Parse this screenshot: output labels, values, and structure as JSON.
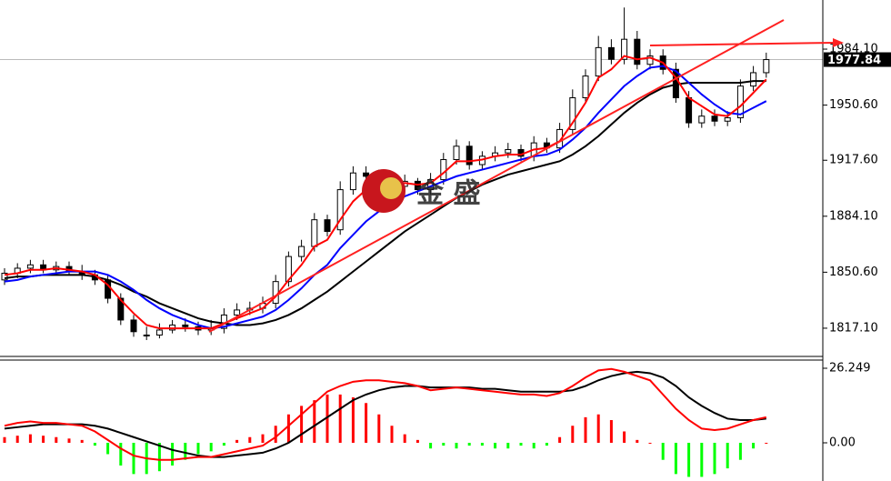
{
  "chart_data": [
    {
      "type": "candlestick",
      "up_color": "#ffffff",
      "down_color": "#000000",
      "edge_color": "#000000",
      "open": [
        1846,
        1850,
        1853,
        1855,
        1852,
        1854,
        1851,
        1849,
        1846,
        1835,
        1822,
        1813,
        1813,
        1816,
        1819,
        1818,
        1816,
        1817,
        1825,
        1828,
        1829,
        1832,
        1845,
        1860,
        1866,
        1882,
        1876,
        1900,
        1910,
        1908,
        1904,
        1902,
        1905,
        1900,
        1906,
        1918,
        1926,
        1915,
        1920,
        1922,
        1924,
        1920,
        1928,
        1925,
        1936,
        1955,
        1968,
        1985,
        1978,
        1990,
        1975,
        1980,
        1972,
        1955,
        1940,
        1944,
        1941,
        1943,
        1962,
        1970
      ],
      "high": [
        1853,
        1856,
        1858,
        1858,
        1857,
        1857,
        1855,
        1852,
        1849,
        1838,
        1825,
        1818,
        1820,
        1822,
        1823,
        1821,
        1822,
        1829,
        1832,
        1833,
        1836,
        1849,
        1863,
        1870,
        1886,
        1885,
        1905,
        1914,
        1914,
        1912,
        1908,
        1909,
        1907,
        1910,
        1922,
        1930,
        1929,
        1923,
        1926,
        1928,
        1927,
        1932,
        1931,
        1940,
        1960,
        1972,
        1992,
        1990,
        2009,
        1995,
        1984,
        1984,
        1976,
        1959,
        1948,
        1948,
        1947,
        1966,
        1974,
        1982
      ],
      "low": [
        1843,
        1847,
        1850,
        1850,
        1850,
        1849,
        1846,
        1843,
        1832,
        1819,
        1812,
        1810,
        1811,
        1814,
        1815,
        1813,
        1813,
        1814,
        1822,
        1825,
        1826,
        1829,
        1842,
        1857,
        1863,
        1872,
        1873,
        1897,
        1905,
        1901,
        1899,
        1899,
        1897,
        1897,
        1903,
        1915,
        1912,
        1912,
        1917,
        1919,
        1917,
        1917,
        1922,
        1922,
        1933,
        1952,
        1965,
        1975,
        1975,
        1972,
        1972,
        1969,
        1952,
        1937,
        1937,
        1938,
        1938,
        1940,
        1959,
        1967
      ],
      "close": [
        1850,
        1853,
        1855,
        1852,
        1854,
        1851,
        1849,
        1846,
        1835,
        1822,
        1815,
        1813,
        1816,
        1819,
        1818,
        1816,
        1817,
        1825,
        1828,
        1829,
        1832,
        1845,
        1860,
        1866,
        1882,
        1875,
        1900,
        1910,
        1908,
        1904,
        1902,
        1905,
        1900,
        1906,
        1918,
        1926,
        1915,
        1920,
        1922,
        1924,
        1920,
        1928,
        1925,
        1936,
        1955,
        1968,
        1985,
        1978,
        1990,
        1975,
        1980,
        1972,
        1955,
        1940,
        1944,
        1941,
        1943,
        1962,
        1970,
        1977.84
      ],
      "series": [
        {
          "color": "#000000",
          "values": [
            1847,
            1848,
            1848,
            1849,
            1849,
            1849,
            1849,
            1848,
            1846,
            1843,
            1839,
            1836,
            1832,
            1829,
            1826,
            1823,
            1821,
            1820,
            1819,
            1819,
            1820,
            1822,
            1825,
            1829,
            1834,
            1839,
            1845,
            1851,
            1857,
            1863,
            1869,
            1875,
            1880,
            1885,
            1890,
            1895,
            1899,
            1903,
            1906,
            1909,
            1911,
            1913,
            1915,
            1917,
            1921,
            1926,
            1932,
            1939,
            1946,
            1952,
            1957,
            1961,
            1963,
            1964,
            1964,
            1964,
            1964,
            1964,
            1965,
            1965
          ]
        },
        {
          "color": "#0000ff",
          "values": [
            1845,
            1846,
            1848,
            1849,
            1850,
            1851,
            1851,
            1851,
            1849,
            1845,
            1840,
            1834,
            1829,
            1825,
            1822,
            1819,
            1817,
            1818,
            1820,
            1822,
            1824,
            1828,
            1834,
            1841,
            1849,
            1855,
            1865,
            1873,
            1881,
            1887,
            1892,
            1896,
            1899,
            1902,
            1905,
            1908,
            1910,
            1912,
            1914,
            1916,
            1918,
            1920,
            1921,
            1924,
            1930,
            1937,
            1946,
            1954,
            1962,
            1968,
            1973,
            1974,
            1971,
            1964,
            1957,
            1951,
            1946,
            1945,
            1949,
            1953
          ]
        },
        {
          "color": "#ff0000",
          "values": [
            1849,
            1850,
            1852,
            1852,
            1853,
            1852,
            1851,
            1849,
            1843,
            1834,
            1826,
            1819,
            1817,
            1817,
            1817,
            1817,
            1817,
            1820,
            1823,
            1826,
            1829,
            1836,
            1846,
            1855,
            1866,
            1870,
            1882,
            1893,
            1900,
            1903,
            1903,
            1904,
            1903,
            1904,
            1910,
            1917,
            1917,
            1918,
            1920,
            1921,
            1921,
            1924,
            1925,
            1929,
            1940,
            1952,
            1967,
            1972,
            1980,
            1978,
            1979,
            1976,
            1967,
            1955,
            1950,
            1945,
            1944,
            1950,
            1958,
            1966
          ]
        }
      ],
      "ylim": [
        1800.2,
        2013.5
      ],
      "yticks": [
        {
          "value": 1817.1,
          "label": "1817.10"
        },
        {
          "value": 1850.6,
          "label": "1850.60"
        },
        {
          "value": 1884.1,
          "label": "1884.10"
        },
        {
          "value": 1917.6,
          "label": "1917.60"
        },
        {
          "value": 1950.6,
          "label": "1950.60"
        },
        {
          "value": 1984.1,
          "label": "1984.10"
        }
      ],
      "current_price": 1977.84,
      "watermark": "金 盛"
    },
    {
      "type": "macd",
      "positive_color": "#ff0000",
      "negative_color": "#00ff00",
      "histogram": [
        2,
        2.5,
        3,
        2.5,
        2,
        1.5,
        1,
        -1,
        -4,
        -8,
        -11,
        -11,
        -10,
        -8,
        -6,
        -4,
        -3,
        -1,
        1,
        2,
        3,
        6,
        10,
        13,
        15,
        17,
        17,
        16,
        14,
        10,
        6,
        3,
        1,
        -2,
        -1,
        -2,
        -1,
        -1,
        -2,
        -2,
        -1,
        -2,
        -1,
        2,
        6,
        9,
        10,
        8,
        4,
        1,
        0,
        -6,
        -11,
        -12,
        -12,
        -11,
        -9,
        -6,
        -2,
        0
      ],
      "series": [
        {
          "color": "#000000",
          "values": [
            5,
            5.5,
            6,
            6.5,
            6.5,
            6.5,
            6.5,
            6,
            5,
            3.5,
            2,
            0.5,
            -1,
            -2.5,
            -3.5,
            -4.5,
            -5,
            -5,
            -4.5,
            -4,
            -3.5,
            -2,
            0,
            3,
            6,
            9,
            12,
            15,
            17,
            18.5,
            19.5,
            20,
            20,
            19.5,
            19.5,
            19.5,
            19.5,
            19,
            19,
            18.5,
            18,
            18,
            18,
            18,
            18.5,
            20,
            22,
            23.5,
            24.5,
            25,
            24.5,
            23,
            20,
            16,
            13,
            10.5,
            8.5,
            8,
            8,
            8.5
          ]
        },
        {
          "color": "#ff0000",
          "values": [
            6,
            7,
            7.5,
            7,
            7,
            6.5,
            6,
            4,
            1,
            -2,
            -4.5,
            -5.5,
            -6,
            -6,
            -5.5,
            -5,
            -5,
            -4,
            -3,
            -2,
            -1,
            2,
            6,
            10,
            14,
            18,
            20,
            21.5,
            22,
            22,
            21.5,
            21,
            20,
            18.5,
            19,
            19.5,
            19,
            18.5,
            18,
            17.5,
            17,
            17,
            16.5,
            17.5,
            20,
            23,
            25.5,
            26,
            25,
            23.5,
            22,
            17,
            12,
            8,
            5,
            4.5,
            5,
            6.5,
            8,
            9
          ]
        }
      ],
      "ylim": [
        -13.45,
        29.13
      ],
      "yticks": [
        26.249,
        {
          "value": 0,
          "label": "0.00"
        }
      ]
    }
  ]
}
